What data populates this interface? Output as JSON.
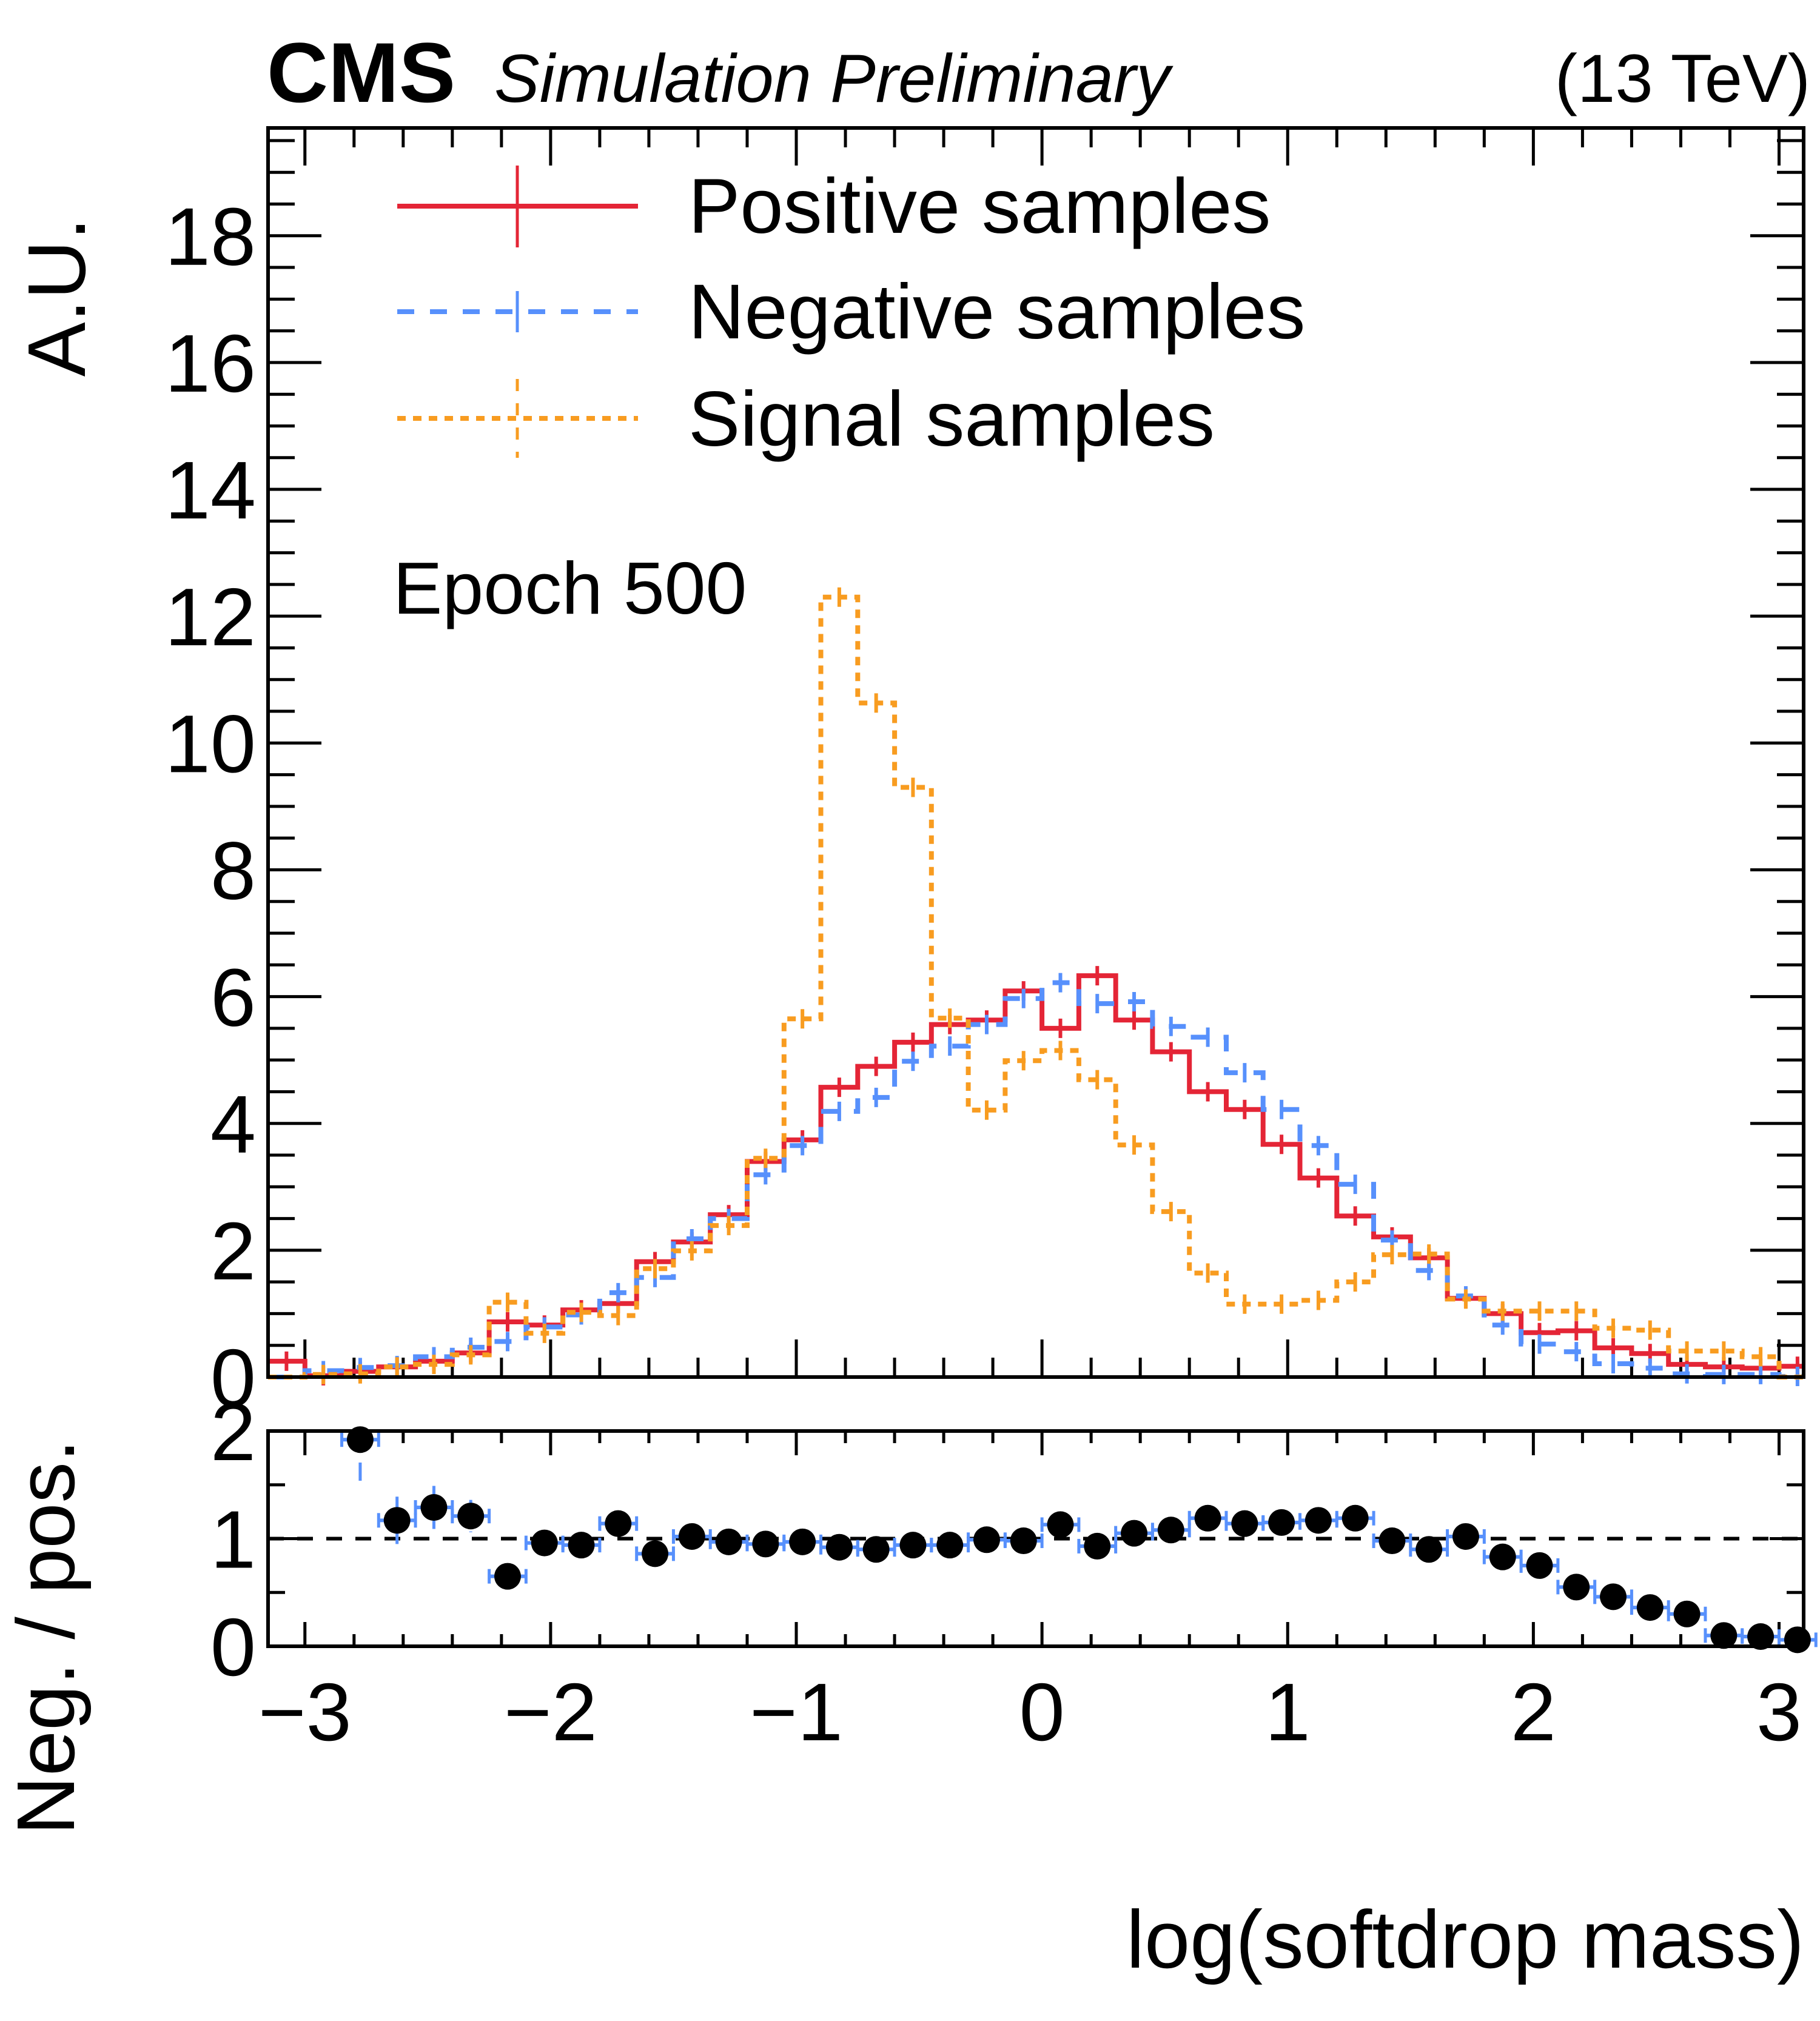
{
  "header": {
    "experiment": "CMS",
    "status": "Simulation Preliminary",
    "energy": "(13 TeV)"
  },
  "annotation": "Epoch 500",
  "colors": {
    "positive": "#E42536",
    "negative": "#5790FC",
    "signal": "#F89C20",
    "ratio_marker": "#000000",
    "ratio_error": "#5790FC"
  },
  "chart_data": [
    {
      "type": "histogram",
      "panel": "main",
      "title": "",
      "xlabel": "log(softdrop mass)",
      "ylabel": "A.U.",
      "xlim": [
        -3.15,
        3.1
      ],
      "ylim": [
        0,
        19.7
      ],
      "grid": false,
      "x_tick_labels": [
        "−3",
        "−2",
        "−1",
        "0",
        "1",
        "2",
        "3"
      ],
      "x_ticks": [
        -3,
        -2,
        -1,
        0,
        1,
        2,
        3
      ],
      "y_tick_labels": [
        "0",
        "2",
        "4",
        "6",
        "8",
        "10",
        "12",
        "14",
        "16",
        "18"
      ],
      "y_ticks": [
        0,
        2,
        4,
        6,
        8,
        10,
        12,
        14,
        16,
        18
      ],
      "legend_position": "top-left",
      "bin_edges_start": -3.15,
      "bin_width": 0.15,
      "series": [
        {
          "name": "Positive samples",
          "style": "solid",
          "color": "#E42536",
          "values": [
            0.25,
            0.02,
            0.09,
            0.16,
            0.25,
            0.38,
            0.87,
            0.82,
            1.06,
            1.16,
            1.82,
            2.13,
            2.56,
            3.4,
            3.74,
            4.57,
            4.9,
            5.28,
            5.56,
            5.63,
            6.09,
            5.5,
            6.33,
            5.63,
            5.13,
            4.5,
            4.22,
            3.67,
            3.14,
            2.54,
            2.21,
            1.88,
            1.24,
            1.0,
            0.7,
            0.73,
            0.46,
            0.37,
            0.2,
            0.16,
            0.14,
            0.17
          ]
        },
        {
          "name": "Negative samples",
          "style": "dashed",
          "color": "#5790FC",
          "values": [
            0.0,
            0.1,
            0.15,
            0.18,
            0.32,
            0.47,
            0.56,
            0.79,
            0.98,
            1.33,
            1.57,
            2.18,
            2.5,
            3.19,
            3.65,
            4.19,
            4.41,
            4.98,
            5.22,
            5.56,
            5.97,
            6.22,
            5.89,
            5.92,
            5.53,
            5.36,
            4.8,
            4.22,
            3.65,
            3.04,
            2.16,
            1.68,
            1.28,
            0.82,
            0.52,
            0.4,
            0.21,
            0.14,
            0.05,
            0.04,
            0.04,
            0.01
          ]
        },
        {
          "name": "Signal samples",
          "style": "dotted",
          "color": "#F89C20",
          "values": [
            0.0,
            0.04,
            0.05,
            0.16,
            0.2,
            0.35,
            1.18,
            0.69,
            1.02,
            0.97,
            1.71,
            1.99,
            2.39,
            3.45,
            5.65,
            12.3,
            10.63,
            9.3,
            5.66,
            4.21,
            4.99,
            5.15,
            4.69,
            3.66,
            2.61,
            1.64,
            1.15,
            1.15,
            1.21,
            1.5,
            1.93,
            1.94,
            1.23,
            1.04,
            1.04,
            1.04,
            0.77,
            0.74,
            0.41,
            0.41,
            0.32,
            0.0
          ]
        }
      ]
    },
    {
      "type": "scatter",
      "panel": "ratio",
      "xlabel": "log(softdrop mass)",
      "ylabel": "Neg. / pos.",
      "xlim": [
        -3.15,
        3.1
      ],
      "ylim": [
        0,
        2
      ],
      "grid": false,
      "reference_line": 1,
      "y_tick_labels": [
        "0",
        "1",
        "2"
      ],
      "y_ticks": [
        0,
        1,
        2
      ],
      "x": [
        -2.775,
        -2.625,
        -2.475,
        -2.325,
        -2.175,
        -2.025,
        -1.875,
        -1.725,
        -1.575,
        -1.425,
        -1.275,
        -1.125,
        -0.975,
        -0.825,
        -0.675,
        -0.525,
        -0.375,
        -0.225,
        -0.075,
        0.075,
        0.225,
        0.375,
        0.525,
        0.675,
        0.825,
        0.975,
        1.125,
        1.275,
        1.425,
        1.575,
        1.725,
        1.875,
        2.025,
        2.175,
        2.325,
        2.475,
        2.625,
        2.775,
        2.925,
        3.075
      ],
      "y": [
        1.92,
        1.17,
        1.29,
        1.21,
        0.65,
        0.96,
        0.94,
        1.14,
        0.86,
        1.02,
        0.97,
        0.95,
        0.97,
        0.92,
        0.9,
        0.94,
        0.94,
        0.99,
        0.98,
        1.13,
        0.93,
        1.05,
        1.08,
        1.19,
        1.14,
        1.15,
        1.17,
        1.19,
        0.98,
        0.9,
        1.02,
        0.83,
        0.75,
        0.55,
        0.46,
        0.36,
        0.3,
        0.1,
        0.09,
        0.06
      ],
      "yerr": [
        0.47,
        0.22,
        0.2,
        0.15,
        0.03,
        0.05,
        0.03,
        0.09,
        0.03,
        0.03,
        0.03,
        0.03,
        0.03,
        0.03,
        0.03,
        0.03,
        0.03,
        0.03,
        0.03,
        0.05,
        0.03,
        0.03,
        0.03,
        0.03,
        0.03,
        0.03,
        0.03,
        0.03,
        0.03,
        0.03,
        0.03,
        0.03,
        0.03,
        0.03,
        0.03,
        0.03,
        0.03,
        0.02,
        0.02,
        0.02
      ],
      "xerr": 0.075
    }
  ]
}
